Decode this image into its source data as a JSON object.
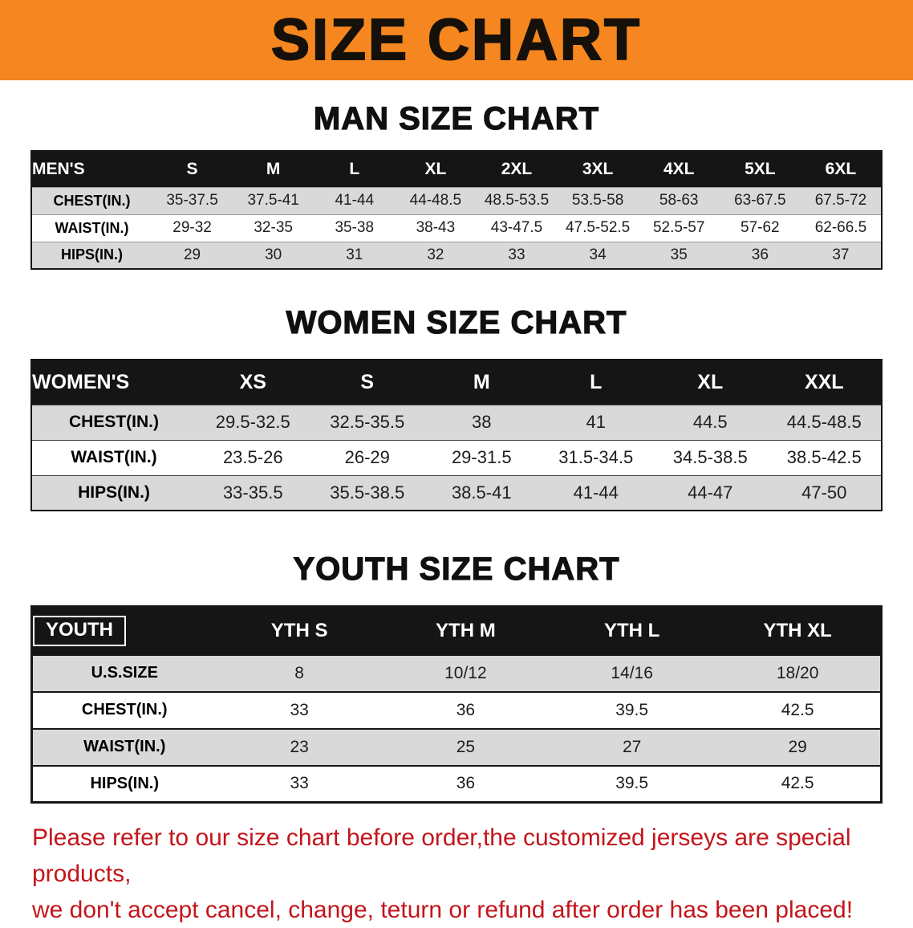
{
  "banner": {
    "title": "SIZE CHART"
  },
  "sections": [
    {
      "id": "men",
      "title": "MAN SIZE CHART",
      "table": {
        "header": [
          "MEN'S",
          "S",
          "M",
          "L",
          "XL",
          "2XL",
          "3XL",
          "4XL",
          "5XL",
          "6XL"
        ],
        "rows": [
          {
            "label": "CHEST(IN.)",
            "values": [
              "35-37.5",
              "37.5-41",
              "41-44",
              "44-48.5",
              "48.5-53.5",
              "53.5-58",
              "58-63",
              "63-67.5",
              "67.5-72"
            ]
          },
          {
            "label": "WAIST(IN.)",
            "values": [
              "29-32",
              "32-35",
              "35-38",
              "38-43",
              "43-47.5",
              "47.5-52.5",
              "52.5-57",
              "57-62",
              "62-66.5"
            ]
          },
          {
            "label": "HIPS(IN.)",
            "values": [
              "29",
              "30",
              "31",
              "32",
              "33",
              "34",
              "35",
              "36",
              "37"
            ]
          }
        ]
      }
    },
    {
      "id": "women",
      "title": "WOMEN SIZE CHART",
      "table": {
        "header": [
          "WOMEN'S",
          "XS",
          "S",
          "M",
          "L",
          "XL",
          "XXL"
        ],
        "rows": [
          {
            "label": "CHEST(IN.)",
            "values": [
              "29.5-32.5",
              "32.5-35.5",
              "38",
              "41",
              "44.5",
              "44.5-48.5"
            ]
          },
          {
            "label": "WAIST(IN.)",
            "values": [
              "23.5-26",
              "26-29",
              "29-31.5",
              "31.5-34.5",
              "34.5-38.5",
              "38.5-42.5"
            ]
          },
          {
            "label": "HIPS(IN.)",
            "values": [
              "33-35.5",
              "35.5-38.5",
              "38.5-41",
              "41-44",
              "44-47",
              "47-50"
            ]
          }
        ]
      }
    },
    {
      "id": "youth",
      "title": "YOUTH SIZE CHART",
      "table": {
        "header": [
          "YOUTH",
          "YTH S",
          "YTH M",
          "YTH L",
          "YTH XL"
        ],
        "rows": [
          {
            "label": "U.S.SIZE",
            "values": [
              "8",
              "10/12",
              "14/16",
              "18/20"
            ]
          },
          {
            "label": "CHEST(IN.)",
            "values": [
              "33",
              "36",
              "39.5",
              "42.5"
            ]
          },
          {
            "label": "WAIST(IN.)",
            "values": [
              "23",
              "25",
              "27",
              "29"
            ]
          },
          {
            "label": "HIPS(IN.)",
            "values": [
              "33",
              "36",
              "39.5",
              "42.5"
            ]
          }
        ]
      }
    }
  ],
  "footer": {
    "lines": [
      "Please refer to our size chart before order,the customized jerseys are special products,",
      "we don't accept cancel, change, teturn or refund after order has been placed!"
    ]
  },
  "colors": {
    "banner_orange": "#f6861f",
    "header_black": "#151515",
    "stripe_gray": "#d9d9d9",
    "notice_red": "#c3151b"
  }
}
